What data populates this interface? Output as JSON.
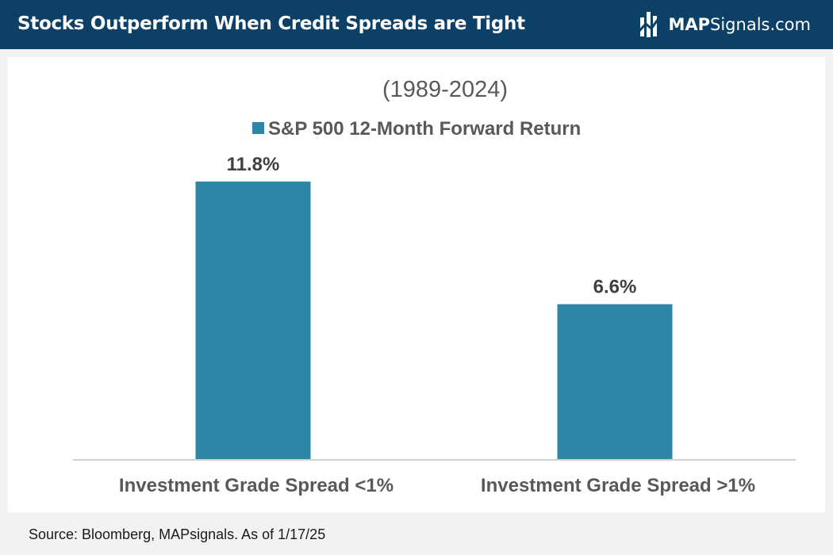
{
  "header": {
    "title": "Stocks Outperform When Credit Spreads are Tight",
    "brand_bold": "MAP",
    "brand_rest": "Signals.com"
  },
  "chart_data": {
    "type": "bar",
    "title": "(1989-2024)",
    "categories": [
      "Investment Grade Spread <1%",
      "Investment Grade Spread >1%"
    ],
    "series": [
      {
        "name": "S&P 500 12-Month Forward Return",
        "values": [
          11.8,
          6.6
        ],
        "labels": [
          "11.8%",
          "6.6%"
        ]
      }
    ],
    "ylim": [
      0,
      11.8
    ],
    "grid": false,
    "legend_position": "top",
    "colors": {
      "bar": "#2e86a7",
      "axis": "#d0d0d0",
      "label": "#404040",
      "title": "#595959"
    }
  },
  "source": "Source: Bloomberg, MAPsignals. As of 1/17/25"
}
